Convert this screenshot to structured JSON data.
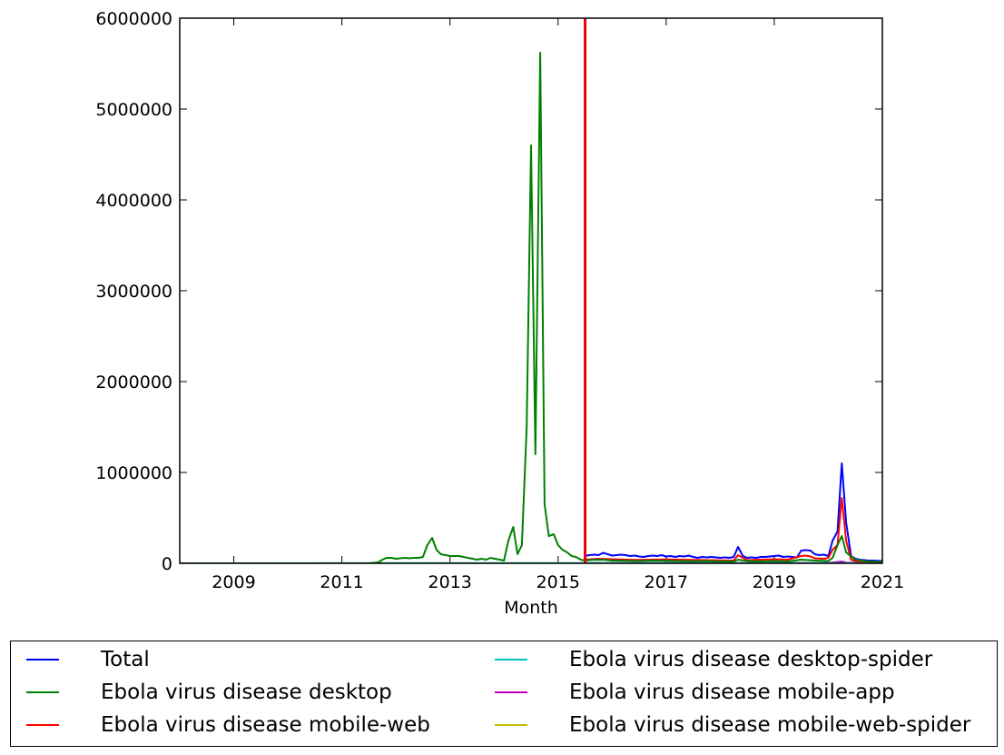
{
  "chart_data": {
    "type": "line",
    "title": "",
    "xlabel": "Month",
    "ylabel": "",
    "xlim": [
      2008,
      2021
    ],
    "ylim": [
      0,
      6000000
    ],
    "x_ticks": [
      "2009",
      "2011",
      "2013",
      "2015",
      "2017",
      "2019",
      "2021"
    ],
    "y_ticks": [
      "0",
      "1000000",
      "2000000",
      "3000000",
      "4000000",
      "5000000",
      "6000000"
    ],
    "grid": false,
    "legend_position": "below",
    "reference_line": {
      "x": 2015.5,
      "color": "#e8000b",
      "label": ""
    },
    "series": [
      {
        "name": "Total",
        "color": "#0000ff",
        "x": [
          2015.5,
          2015.58,
          2015.67,
          2015.75,
          2015.83,
          2015.92,
          2016.0,
          2016.08,
          2016.17,
          2016.25,
          2016.33,
          2016.42,
          2016.5,
          2016.58,
          2016.67,
          2016.75,
          2016.83,
          2016.92,
          2017.0,
          2017.08,
          2017.17,
          2017.25,
          2017.33,
          2017.42,
          2017.5,
          2017.58,
          2017.67,
          2017.75,
          2017.83,
          2017.92,
          2018.0,
          2018.08,
          2018.17,
          2018.25,
          2018.33,
          2018.42,
          2018.5,
          2018.58,
          2018.67,
          2018.75,
          2018.83,
          2018.92,
          2019.0,
          2019.08,
          2019.17,
          2019.25,
          2019.33,
          2019.42,
          2019.5,
          2019.58,
          2019.67,
          2019.75,
          2019.83,
          2019.92,
          2020.0,
          2020.08,
          2020.17,
          2020.25,
          2020.33,
          2020.42,
          2020.5,
          2020.58,
          2020.67,
          2020.75,
          2020.83,
          2020.92,
          2021.0
        ],
        "y": [
          80000,
          90000,
          95000,
          90000,
          115000,
          100000,
          85000,
          90000,
          95000,
          90000,
          80000,
          85000,
          75000,
          70000,
          80000,
          85000,
          80000,
          90000,
          75000,
          80000,
          70000,
          80000,
          75000,
          85000,
          70000,
          60000,
          70000,
          65000,
          70000,
          65000,
          60000,
          65000,
          60000,
          70000,
          180000,
          80000,
          60000,
          65000,
          60000,
          70000,
          70000,
          75000,
          80000,
          85000,
          70000,
          75000,
          70000,
          65000,
          140000,
          145000,
          140000,
          100000,
          90000,
          95000,
          80000,
          250000,
          350000,
          1100000,
          450000,
          80000,
          50000,
          40000,
          35000,
          30000,
          30000,
          28000,
          25000
        ]
      },
      {
        "name": "Ebola virus disease desktop",
        "color": "#008000",
        "x": [
          2008.0,
          2008.5,
          2009.0,
          2009.5,
          2010.0,
          2010.5,
          2011.0,
          2011.5,
          2011.67,
          2011.75,
          2011.83,
          2011.92,
          2012.0,
          2012.08,
          2012.17,
          2012.25,
          2012.33,
          2012.42,
          2012.5,
          2012.58,
          2012.67,
          2012.75,
          2012.83,
          2012.92,
          2013.0,
          2013.08,
          2013.17,
          2013.25,
          2013.33,
          2013.42,
          2013.5,
          2013.58,
          2013.67,
          2013.75,
          2013.83,
          2013.92,
          2014.0,
          2014.08,
          2014.17,
          2014.25,
          2014.33,
          2014.42,
          2014.5,
          2014.58,
          2014.67,
          2014.75,
          2014.83,
          2014.92,
          2015.0,
          2015.08,
          2015.17,
          2015.25,
          2015.33,
          2015.42,
          2015.5,
          2015.58,
          2015.67,
          2015.75,
          2015.83,
          2015.92,
          2016.0,
          2016.25,
          2016.5,
          2016.75,
          2017.0,
          2017.25,
          2017.5,
          2017.75,
          2018.0,
          2018.25,
          2018.33,
          2018.5,
          2018.75,
          2019.0,
          2019.25,
          2019.5,
          2019.75,
          2020.0,
          2020.08,
          2020.17,
          2020.25,
          2020.33,
          2020.5,
          2020.75,
          2021.0
        ],
        "y": [
          0,
          0,
          0,
          0,
          0,
          0,
          0,
          0,
          10000,
          40000,
          60000,
          60000,
          50000,
          55000,
          60000,
          55000,
          60000,
          60000,
          70000,
          200000,
          280000,
          150000,
          100000,
          90000,
          80000,
          80000,
          80000,
          70000,
          60000,
          50000,
          40000,
          50000,
          40000,
          60000,
          50000,
          40000,
          30000,
          250000,
          400000,
          100000,
          200000,
          1500000,
          4600000,
          1200000,
          5620000,
          650000,
          300000,
          320000,
          200000,
          150000,
          120000,
          80000,
          70000,
          40000,
          30000,
          35000,
          40000,
          38000,
          40000,
          35000,
          30000,
          28000,
          25000,
          30000,
          28000,
          25000,
          22000,
          25000,
          20000,
          20000,
          40000,
          25000,
          20000,
          25000,
          20000,
          40000,
          30000,
          25000,
          60000,
          200000,
          300000,
          120000,
          40000,
          20000,
          15000
        ]
      },
      {
        "name": "Ebola virus disease mobile-web",
        "color": "#ff0000",
        "x": [
          2015.5,
          2015.75,
          2016.0,
          2016.25,
          2016.5,
          2016.75,
          2017.0,
          2017.25,
          2017.5,
          2017.75,
          2018.0,
          2018.25,
          2018.33,
          2018.5,
          2018.75,
          2019.0,
          2019.25,
          2019.5,
          2019.58,
          2019.67,
          2019.75,
          2019.92,
          2020.0,
          2020.08,
          2020.17,
          2020.25,
          2020.33,
          2020.42,
          2020.5,
          2020.75,
          2021.0
        ],
        "y": [
          40000,
          50000,
          45000,
          40000,
          38000,
          40000,
          42000,
          40000,
          38000,
          35000,
          32000,
          30000,
          90000,
          35000,
          40000,
          45000,
          40000,
          80000,
          85000,
          75000,
          55000,
          50000,
          60000,
          150000,
          200000,
          720000,
          250000,
          40000,
          25000,
          18000,
          15000
        ]
      },
      {
        "name": "Ebola virus disease desktop-spider",
        "color": "#00bfbf",
        "x": [
          2008.0,
          2015.5,
          2021.0
        ],
        "y": [
          0,
          2000,
          2000
        ]
      },
      {
        "name": "Ebola virus disease mobile-app",
        "color": "#bf00bf",
        "x": [
          2015.5,
          2020.0,
          2020.17,
          2020.25,
          2020.33,
          2021.0
        ],
        "y": [
          3000,
          4000,
          15000,
          20000,
          8000,
          3000
        ]
      },
      {
        "name": "Ebola virus disease mobile-web-spider",
        "color": "#bfbf00",
        "x": [
          2008.0,
          2015.5,
          2021.0
        ],
        "y": [
          0,
          1000,
          1000
        ]
      }
    ]
  }
}
